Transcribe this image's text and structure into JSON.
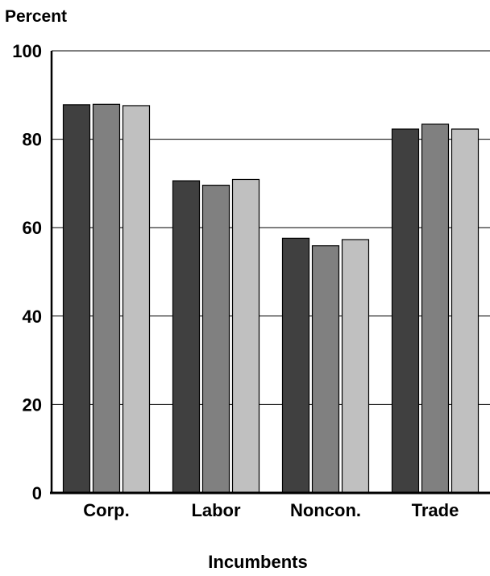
{
  "chart_data": {
    "type": "bar",
    "title": "",
    "ylabel": "Percent",
    "xlabel": "Incumbents",
    "categories": [
      "Corp.",
      "Labor",
      "Noncon.",
      "Trade"
    ],
    "series": [
      {
        "values": [
          87.8,
          70.6,
          57.6,
          82.3
        ],
        "color": "#404040"
      },
      {
        "values": [
          87.9,
          69.6,
          55.9,
          83.4
        ],
        "color": "#808080"
      },
      {
        "values": [
          87.6,
          70.9,
          57.3,
          82.3
        ],
        "color": "#c0c0c0"
      }
    ],
    "ylim": [
      0,
      100
    ],
    "yticks": [
      "0",
      "20",
      "40",
      "60",
      "80",
      "100"
    ],
    "grid": true,
    "legend": "none"
  }
}
